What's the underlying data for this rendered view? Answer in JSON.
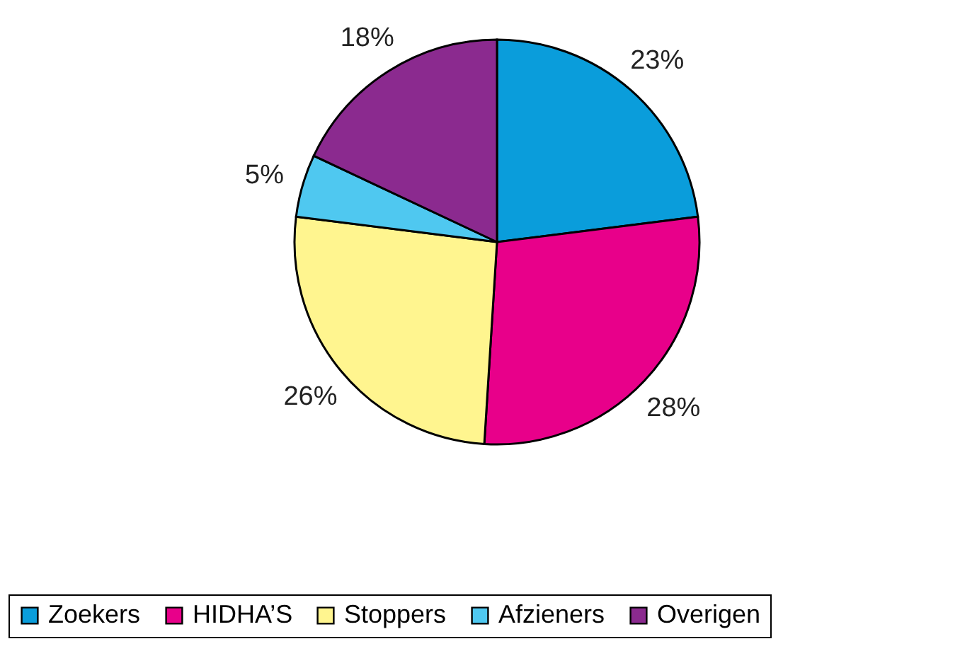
{
  "chart_data": {
    "type": "pie",
    "categories": [
      "Zoekers",
      "HIDHA’S",
      "Stoppers",
      "Afzieners",
      "Overigen"
    ],
    "values": [
      23,
      28,
      26,
      5,
      18
    ],
    "colors": [
      "#0a9ddb",
      "#e8008a",
      "#fff58f",
      "#4fc8f0",
      "#8b2a8f"
    ],
    "value_labels": [
      "23%",
      "28%",
      "26%",
      "5%",
      "18%"
    ],
    "legend": "bottom"
  }
}
